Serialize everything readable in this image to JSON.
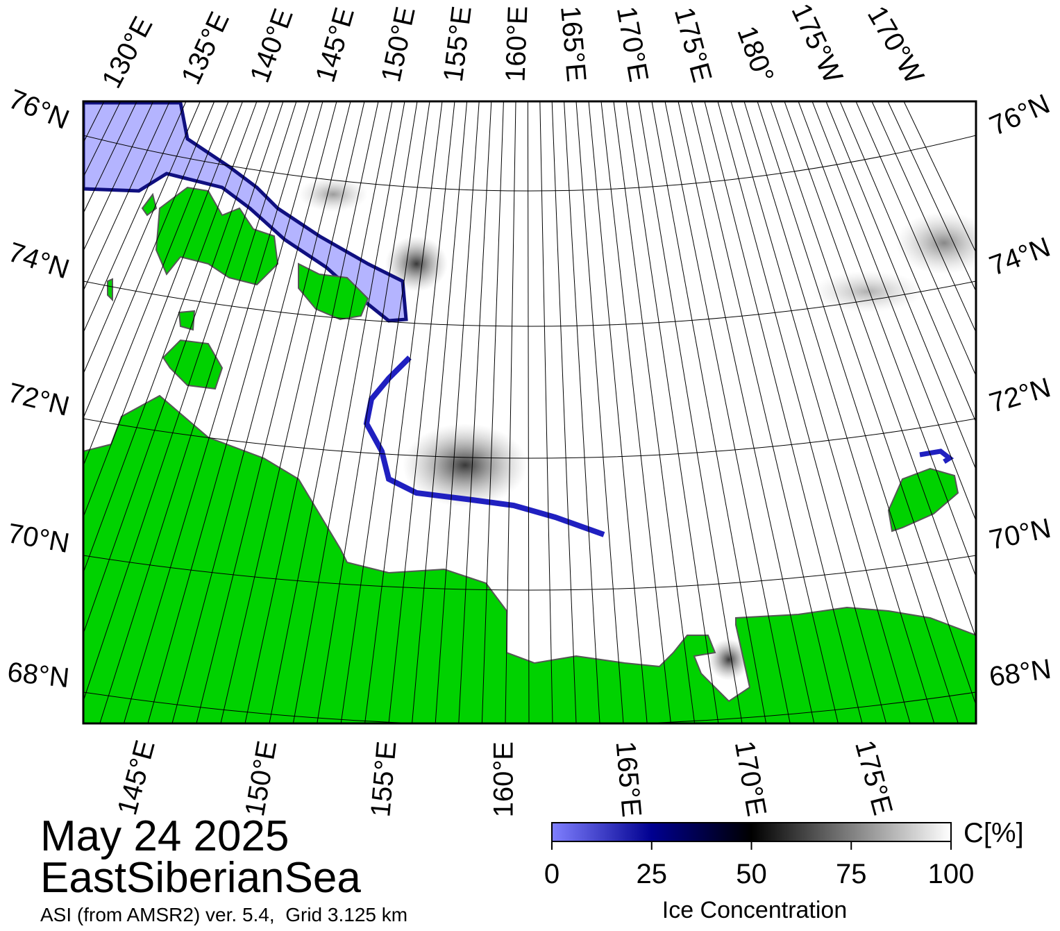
{
  "map": {
    "date": "May 24 2025",
    "region": "EastSiberianSea",
    "source": "ASI (from AMSR2) ver. 5.4,  Grid 3.125 km",
    "top_longitude_labels": [
      "130°E",
      "135°E",
      "140°E",
      "145°E",
      "150°E",
      "155°E",
      "160°E",
      "165°E",
      "170°E",
      "175°E",
      "180°",
      "175°W",
      "170°W"
    ],
    "bottom_longitude_labels": [
      "145°E",
      "150°E",
      "155°E",
      "160°E",
      "165°E",
      "170°E",
      "175°E"
    ],
    "left_latitude_labels": [
      "76°N",
      "74°N",
      "72°N",
      "70°N",
      "68°N"
    ],
    "right_latitude_labels": [
      "76°N",
      "74°N",
      "72°N",
      "70°N",
      "68°N"
    ]
  },
  "colorbar": {
    "label": "Ice Concentration",
    "unit": "C[%]",
    "range": [
      0,
      100
    ],
    "ticks": [
      0,
      25,
      50,
      75,
      100
    ]
  }
}
